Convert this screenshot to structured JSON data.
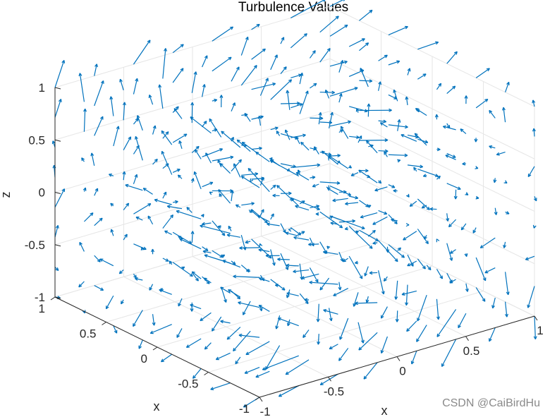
{
  "watermark": "CSDN @CaiBirdHu",
  "colors": {
    "arrow": "#0072BD",
    "grid": "#e6e6e6",
    "axis": "#262626"
  },
  "chart_data": {
    "type": "quiver3",
    "title": "Turbulence Values",
    "xlabel": "x",
    "ylabel": "x",
    "zlabel": "z",
    "xlim": [
      -1,
      1
    ],
    "ylim": [
      -1,
      1
    ],
    "zlim": [
      -1,
      1
    ],
    "xticks": [
      -1,
      -0.5,
      0,
      0.5,
      1
    ],
    "yticks": [
      -1,
      -0.5,
      0,
      0.5,
      1
    ],
    "zticks": [
      -1,
      -0.5,
      0,
      0.5,
      1
    ],
    "grid": true,
    "grid_points_per_axis": 8
  }
}
